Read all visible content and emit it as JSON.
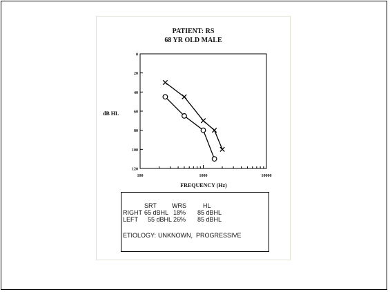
{
  "patient": {
    "line1": "PATIENT: RS",
    "line2": "68 YR OLD MALE"
  },
  "chart_data": {
    "type": "line",
    "xscale": "log",
    "xlim": [
      100,
      10000
    ],
    "ylim": [
      0,
      120
    ],
    "y_inverted": true,
    "ylabel": "dB HL",
    "xlabel": "FREQUENCY (Hz)",
    "xticks": [
      100,
      1000,
      10000
    ],
    "xtick_labels": [
      "100",
      "1000",
      "10000"
    ],
    "yticks": [
      0,
      20,
      40,
      60,
      80,
      100,
      120
    ],
    "ytick_labels": [
      "0",
      "20",
      "40",
      "60",
      "80",
      "100",
      "120"
    ],
    "series": [
      {
        "marker": "x",
        "x": [
          250,
          500,
          1000,
          1500,
          2000
        ],
        "y": [
          30,
          45,
          70,
          80,
          100
        ]
      },
      {
        "marker": "o",
        "x": [
          250,
          500,
          1000,
          1500
        ],
        "y": [
          45,
          65,
          80,
          110
        ]
      }
    ]
  },
  "results": {
    "headers": [
      "SRT",
      "WRS",
      "HL"
    ],
    "rows": [
      {
        "label": "RIGHT",
        "srt": "65 dBHL",
        "wrs": "18%",
        "hl": "85 dBHL"
      },
      {
        "label": "LEFT",
        "srt": "55 dBHL",
        "wrs": "26%",
        "hl": "85 dBHL"
      }
    ],
    "etiology_label": "ETIOLOGY:",
    "etiology_value": "UNKNOWN,",
    "etiology_value2": "PROGRESSIVE"
  }
}
